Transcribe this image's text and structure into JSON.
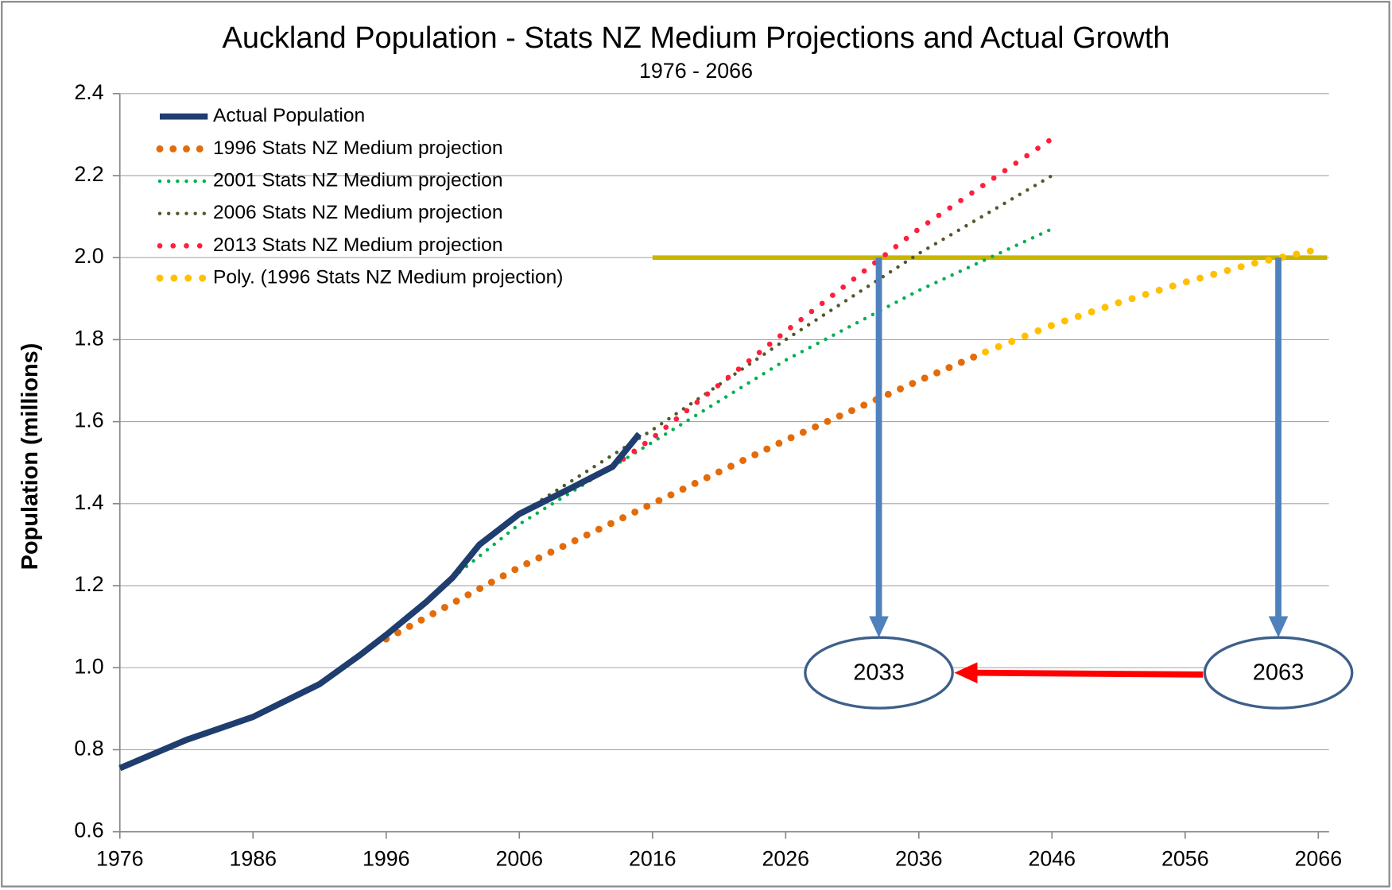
{
  "chart_data": {
    "type": "line",
    "title": "Auckland Population - Stats NZ Medium Projections and Actual Growth",
    "subtitle": "1976 - 2066",
    "y_label": "Population (millions)",
    "xlim": [
      1976,
      2066
    ],
    "xticks": [
      1976,
      1986,
      1996,
      2006,
      2016,
      2026,
      2036,
      2046,
      2056,
      2066
    ],
    "ylim": [
      0.6,
      2.4
    ],
    "yticks": [
      0.6,
      0.8,
      {
        "value": 1,
        "label": "1.0"
      },
      1.2,
      1.4,
      1.6,
      1.8,
      {
        "value": 2,
        "label": "2.0"
      },
      2.2,
      2.4
    ],
    "grid": true,
    "legend": "top-left",
    "series": [
      {
        "name": "Actual Population",
        "color": "#1f3d6e",
        "style": "solid",
        "x": [
          1976,
          1981,
          1986,
          1991,
          1994,
          1996,
          1999,
          2001,
          2003,
          2006,
          2010,
          2013,
          2014,
          2015
        ],
        "values": [
          0.755,
          0.824,
          0.88,
          0.96,
          1.03,
          1.08,
          1.16,
          1.22,
          1.3,
          1.375,
          1.44,
          1.49,
          1.53,
          1.57
        ]
      },
      {
        "name": "1996 Stats NZ Medium projection",
        "color": "#e36c0a",
        "style": "dotted",
        "x": [
          1996,
          2006,
          2016,
          2026,
          2036,
          2041
        ],
        "values": [
          1.07,
          1.245,
          1.4,
          1.555,
          1.7,
          1.77
        ]
      },
      {
        "name": "2001 Stats NZ Medium projection",
        "color": "#00b050",
        "style": "dotted",
        "x": [
          2001,
          2006,
          2016,
          2026,
          2036,
          2046
        ],
        "values": [
          1.22,
          1.35,
          1.55,
          1.75,
          1.92,
          2.07
        ]
      },
      {
        "name": "2006 Stats NZ Medium projection",
        "color": "#4f5a2a",
        "style": "dotted",
        "x": [
          2006,
          2016,
          2026,
          2036,
          2046
        ],
        "values": [
          1.375,
          1.58,
          1.8,
          2.01,
          2.2
        ]
      },
      {
        "name": "2013 Stats NZ Medium projection",
        "color": "#ff1f3d",
        "style": "dotted",
        "x": [
          2013,
          2016,
          2026,
          2036,
          2046
        ],
        "values": [
          1.49,
          1.56,
          1.82,
          2.07,
          2.29
        ]
      },
      {
        "name": "Poly. (1996 Stats NZ Medium projection)",
        "color": "#ffc000",
        "style": "dotted",
        "x": [
          2041,
          2046,
          2051,
          2056,
          2061,
          2066
        ],
        "values": [
          1.77,
          1.835,
          1.89,
          1.94,
          1.985,
          2.02
        ]
      }
    ],
    "reference_line": {
      "y": 2,
      "x_start": 2016,
      "color": "#c9b400"
    },
    "annotations": [
      2033,
      2063
    ]
  }
}
